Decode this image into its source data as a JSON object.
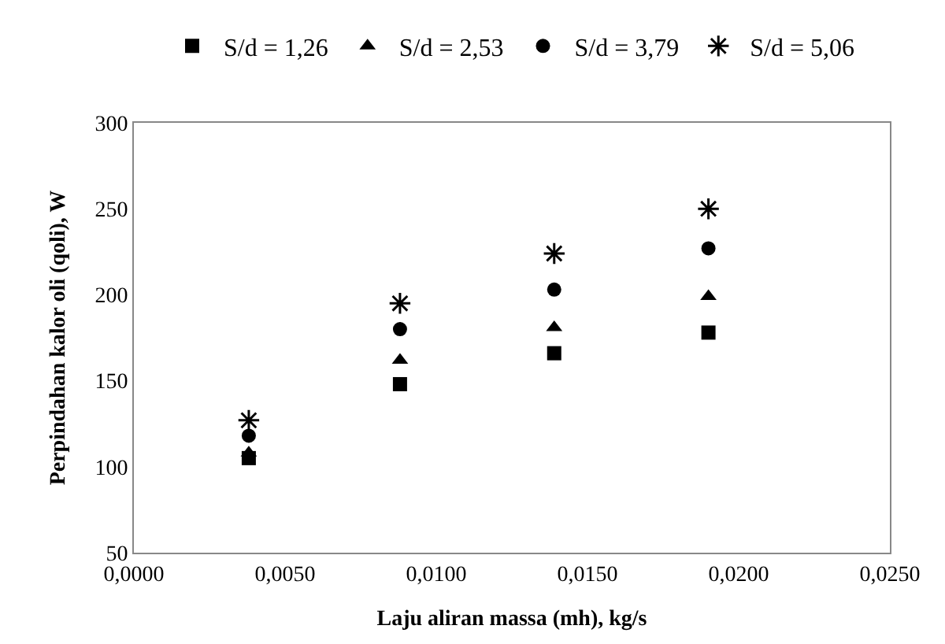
{
  "chart_data": {
    "type": "scatter",
    "xlabel": "Laju aliran massa (mh), kg/s",
    "ylabel": "Perpindahan kalor oli (qoli), W",
    "x": [
      0.0038,
      0.0088,
      0.0139,
      0.019
    ],
    "series": [
      {
        "name": "S/d = 1,26",
        "color": "#000000",
        "marker": "square",
        "values": [
          105,
          148,
          166,
          178
        ]
      },
      {
        "name": "S/d = 2,53",
        "color": "#000000",
        "marker": "triangle",
        "values": [
          108,
          162,
          181,
          199
        ]
      },
      {
        "name": "S/d = 3,79",
        "color": "#000000",
        "marker": "circle",
        "values": [
          118,
          180,
          203,
          227
        ]
      },
      {
        "name": "S/d = 5,06",
        "color": "#000000",
        "marker": "cross",
        "values": [
          127,
          195,
          224,
          250
        ]
      }
    ],
    "xlim": [
      0,
      0.025
    ],
    "xticks": [
      {
        "value": 0,
        "label": "0,0000"
      },
      {
        "value": 0.005,
        "label": "0,0050"
      },
      {
        "value": 0.01,
        "label": "0,0100"
      },
      {
        "value": 0.015,
        "label": "0,0150"
      },
      {
        "value": 0.02,
        "label": "0,0200"
      },
      {
        "value": 0.025,
        "label": "0,0250"
      }
    ],
    "ylim": [
      50,
      300
    ],
    "yticks": [
      50,
      100,
      150,
      200,
      250,
      300
    ],
    "legend": "top"
  }
}
